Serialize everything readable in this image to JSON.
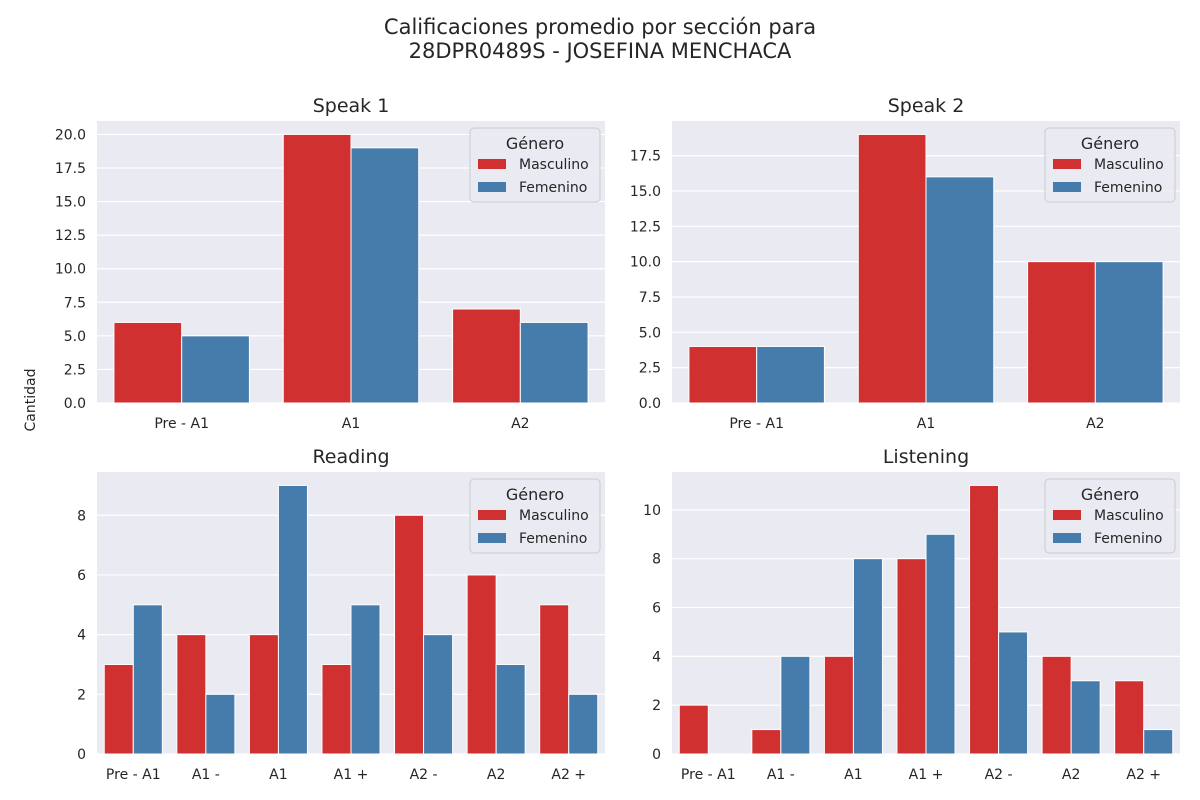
{
  "figure": {
    "title_line1": "Calificaciones promedio por sección para",
    "title_line2": "28DPR0489S - JOSEFINA MENCHACA",
    "ylabel": "Cantidad"
  },
  "colors": {
    "masculino": "#d0302f",
    "femenino": "#467cab",
    "plot_bg": "#eaeaf2",
    "grid": "#ffffff"
  },
  "chart_data": [
    {
      "type": "bar",
      "title": "Speak 1",
      "categories": [
        "Pre - A1",
        "A1",
        "A2"
      ],
      "series": [
        {
          "name": "Masculino",
          "values": [
            6,
            20,
            7
          ]
        },
        {
          "name": "Femenino",
          "values": [
            5,
            19,
            6
          ]
        }
      ],
      "ylim": [
        0,
        21
      ],
      "yticks": [
        0.0,
        2.5,
        5.0,
        7.5,
        10.0,
        12.5,
        15.0,
        17.5,
        20.0
      ],
      "ytick_labels": [
        "0.0",
        "2.5",
        "5.0",
        "7.5",
        "10.0",
        "12.5",
        "15.0",
        "17.5",
        "20.0"
      ],
      "legend": {
        "title": "Género",
        "position": "upper right"
      },
      "grid": true
    },
    {
      "type": "bar",
      "title": "Speak 2",
      "categories": [
        "Pre - A1",
        "A1",
        "A2"
      ],
      "series": [
        {
          "name": "Masculino",
          "values": [
            4,
            19,
            10
          ]
        },
        {
          "name": "Femenino",
          "values": [
            4,
            16,
            10
          ]
        }
      ],
      "ylim": [
        0,
        19.95
      ],
      "yticks": [
        0.0,
        2.5,
        5.0,
        7.5,
        10.0,
        12.5,
        15.0,
        17.5
      ],
      "ytick_labels": [
        "0.0",
        "2.5",
        "5.0",
        "7.5",
        "10.0",
        "12.5",
        "15.0",
        "17.5"
      ],
      "legend": {
        "title": "Género",
        "position": "upper right"
      },
      "grid": true
    },
    {
      "type": "bar",
      "title": "Reading",
      "categories": [
        "Pre - A1",
        "A1 -",
        "A1",
        "A1 +",
        "A2 -",
        "A2",
        "A2 +"
      ],
      "series": [
        {
          "name": "Masculino",
          "values": [
            3,
            4,
            4,
            3,
            8,
            6,
            5
          ]
        },
        {
          "name": "Femenino",
          "values": [
            5,
            2,
            9,
            5,
            4,
            3,
            2
          ]
        }
      ],
      "ylim": [
        0,
        9.45
      ],
      "yticks": [
        0,
        2,
        4,
        6,
        8
      ],
      "ytick_labels": [
        "0",
        "2",
        "4",
        "6",
        "8"
      ],
      "legend": {
        "title": "Género",
        "position": "upper right"
      },
      "grid": true
    },
    {
      "type": "bar",
      "title": "Listening",
      "categories": [
        "Pre - A1",
        "A1 -",
        "A1",
        "A1 +",
        "A2 -",
        "A2",
        "A2 +"
      ],
      "series": [
        {
          "name": "Masculino",
          "values": [
            2,
            1,
            4,
            8,
            11,
            4,
            3
          ]
        },
        {
          "name": "Femenino",
          "values": [
            0,
            4,
            8,
            9,
            5,
            3,
            1
          ]
        }
      ],
      "ylim": [
        0,
        11.55
      ],
      "yticks": [
        0,
        2,
        4,
        6,
        8,
        10
      ],
      "ytick_labels": [
        "0",
        "2",
        "4",
        "6",
        "8",
        "10"
      ],
      "legend": {
        "title": "Género",
        "position": "upper right"
      },
      "grid": true
    }
  ]
}
